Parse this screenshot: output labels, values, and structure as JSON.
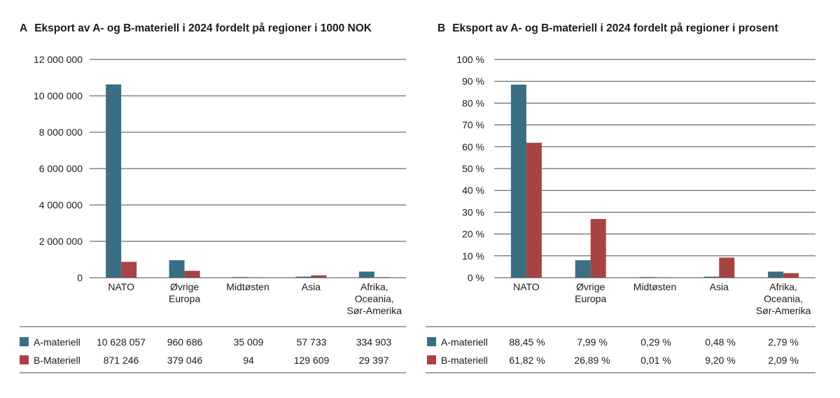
{
  "chart_data": [
    {
      "type": "bar",
      "letter": "A",
      "title": "Eksport av A- og B-materiell i 2024 fordelt på regioner i 1000 NOK",
      "categories": [
        "NATO",
        "Øvrige Europa",
        "Midtøsten",
        "Asia",
        "Afrika, Oceania, Sør-Amerika"
      ],
      "category_lines": [
        [
          "NATO"
        ],
        [
          "Øvrige",
          "Europa"
        ],
        [
          "Midtøsten"
        ],
        [
          "Asia"
        ],
        [
          "Afrika,",
          "Oceania,",
          "Sør-Amerika"
        ]
      ],
      "ylim": [
        0,
        12000000
      ],
      "yticks": [
        0,
        2000000,
        4000000,
        6000000,
        8000000,
        10000000,
        12000000
      ],
      "ytick_labels": [
        "0",
        "2 000 000",
        "4 000 000",
        "6 000 000",
        "8 000 000",
        "10 000 000",
        "12 000 000"
      ],
      "grid": true,
      "series": [
        {
          "name": "A-materiell",
          "color": "#3a6e85",
          "values": [
            10628057,
            960686,
            35009,
            57733,
            334903
          ],
          "labels": [
            "10 628 057",
            "960 686",
            "35 009",
            "57 733",
            "334 903"
          ]
        },
        {
          "name": "B-Materiell",
          "color": "#a84343",
          "values": [
            871246,
            379046,
            94,
            129609,
            29397
          ],
          "labels": [
            "871 246",
            "379 046",
            "94",
            "129 609",
            "29 397"
          ]
        }
      ]
    },
    {
      "type": "bar",
      "letter": "B",
      "title": "Eksport av A- og B-materiell i 2024 fordelt på regioner i prosent",
      "categories": [
        "NATO",
        "Øvrige Europa",
        "Midtøsten",
        "Asia",
        "Afrika, Oceania, Sør-Amerika"
      ],
      "category_lines": [
        [
          "NATO"
        ],
        [
          "Øvrige",
          "Europa"
        ],
        [
          "Midtøsten"
        ],
        [
          "Asia"
        ],
        [
          "Afrika,",
          "Oceania,",
          "Sør-Amerika"
        ]
      ],
      "ylim": [
        0,
        100
      ],
      "yticks": [
        0,
        10,
        20,
        30,
        40,
        50,
        60,
        70,
        80,
        90,
        100
      ],
      "ytick_labels": [
        "0 %",
        "10 %",
        "20 %",
        "30 %",
        "40 %",
        "50 %",
        "60 %",
        "70 %",
        "80 %",
        "90 %",
        "100 %"
      ],
      "grid": true,
      "series": [
        {
          "name": "A-materiell",
          "color": "#3a6e85",
          "values": [
            88.45,
            7.99,
            0.29,
            0.48,
            2.79
          ],
          "labels": [
            "88,45 %",
            "7,99 %",
            "0,29 %",
            "0,48 %",
            "2,79 %"
          ]
        },
        {
          "name": "B-materiell",
          "color": "#a84343",
          "values": [
            61.82,
            26.89,
            0.01,
            9.2,
            2.09
          ],
          "labels": [
            "61,82 %",
            "26,89 %",
            "0,01 %",
            "9,20 %",
            "2,09 %"
          ]
        }
      ]
    }
  ]
}
